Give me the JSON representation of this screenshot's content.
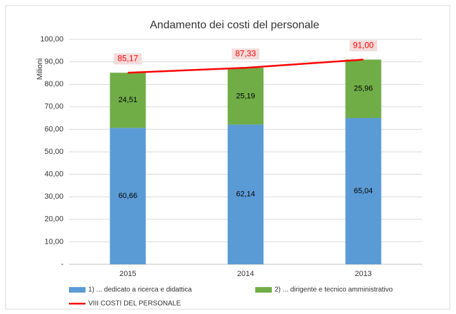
{
  "chart_data": {
    "type": "bar",
    "title": "Andamento dei costi del personale",
    "y_label": "Milioni",
    "categories": [
      "2015",
      "2014",
      "2013"
    ],
    "series": [
      {
        "name": "1) ... dedicato a ricerca e didattica",
        "type": "bar",
        "color": "#5b9bd5",
        "values": [
          60.66,
          62.14,
          65.04
        ],
        "value_labels": [
          "60,66",
          "62,14",
          "65,04"
        ]
      },
      {
        "name": "2) ... dirigente e tecnico amministrativo",
        "type": "bar",
        "color": "#70ad47",
        "values": [
          24.51,
          25.19,
          25.96
        ],
        "value_labels": [
          "24,51",
          "25,19",
          "25,96"
        ]
      },
      {
        "name": "VIII COSTI DEL PERSONALE",
        "type": "line",
        "color": "#ff0000",
        "values": [
          85.17,
          87.33,
          91.0
        ],
        "value_labels": [
          "85,17",
          "87,33",
          "91,00"
        ]
      }
    ],
    "ylim": [
      0,
      100
    ],
    "yticks": [
      {
        "value": 0,
        "label": "-"
      },
      {
        "value": 10,
        "label": "10,00"
      },
      {
        "value": 20,
        "label": "20,00"
      },
      {
        "value": 30,
        "label": "30,00"
      },
      {
        "value": 40,
        "label": "40,00"
      },
      {
        "value": 50,
        "label": "50,00"
      },
      {
        "value": 60,
        "label": "60,00"
      },
      {
        "value": 70,
        "label": "70,00"
      },
      {
        "value": 80,
        "label": "80,00"
      },
      {
        "value": 90,
        "label": "90,00"
      },
      {
        "value": 100,
        "label": "100,00"
      }
    ],
    "grid": true,
    "legend": "bottom"
  }
}
